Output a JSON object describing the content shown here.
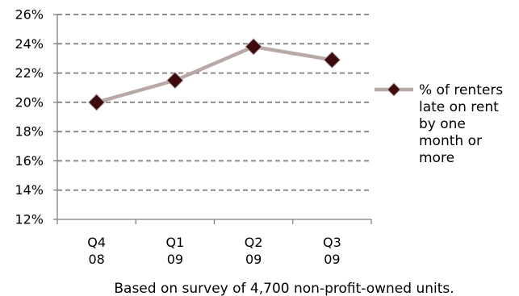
{
  "chart_data": {
    "type": "line",
    "categories": [
      "Q4 08",
      "Q1 09",
      "Q2 09",
      "Q3 09"
    ],
    "category_lines": [
      [
        "Q4",
        "08"
      ],
      [
        "Q1",
        "09"
      ],
      [
        "Q2",
        "09"
      ],
      [
        "Q3",
        "09"
      ]
    ],
    "series": [
      {
        "name": "% of renters late on rent by one month or more",
        "name_lines": [
          "% of renters",
          "late on rent",
          "by one",
          "month or",
          "more"
        ],
        "values": [
          20.0,
          21.5,
          23.8,
          22.9
        ]
      }
    ],
    "ylim": [
      12,
      26
    ],
    "yticks": [
      12,
      14,
      16,
      18,
      20,
      22,
      24,
      26
    ],
    "ytick_labels": [
      "12%",
      "14%",
      "16%",
      "18%",
      "20%",
      "22%",
      "24%",
      "26%"
    ],
    "grid": true,
    "grid_style": "dashed",
    "legend_position": "right",
    "title": "",
    "xlabel": "",
    "ylabel": "",
    "caption": "Based on survey of 4,700 non-profit-owned units.",
    "colors": {
      "line": "#b8a9a6",
      "marker": "#3d0a0e",
      "grid": "#8c8c8c",
      "axis": "#7f7f7f"
    }
  }
}
